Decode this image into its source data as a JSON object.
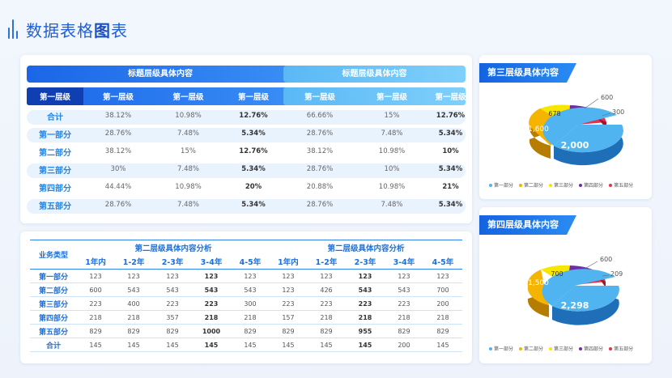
{
  "page": {
    "title_a": "数据表格",
    "title_b": "图",
    "title_c": "表"
  },
  "table1": {
    "group_a": "标题层级具体内容",
    "group_b": "标题层级具体内容",
    "headers": [
      "第一层级",
      "第一层级",
      "第一层级",
      "第一层级",
      "第一层级",
      "第一层级",
      "第一层级"
    ],
    "rows": [
      {
        "label": "合计",
        "cells": [
          "38.12%",
          "10.98%",
          "12.76%",
          "66.66%",
          "15%",
          "12.76%"
        ]
      },
      {
        "label": "第一部分",
        "cells": [
          "28.76%",
          "7.48%",
          "5.34%",
          "28.76%",
          "7.48%",
          "5.34%"
        ]
      },
      {
        "label": "第二部分",
        "cells": [
          "38.12%",
          "15%",
          "12.76%",
          "38.12%",
          "10.98%",
          "10%"
        ]
      },
      {
        "label": "第三部分",
        "cells": [
          "30%",
          "7.48%",
          "5.34%",
          "28.76%",
          "10%",
          "5.34%"
        ]
      },
      {
        "label": "第四部分",
        "cells": [
          "44.44%",
          "10.98%",
          "20%",
          "20.88%",
          "10.98%",
          "21%"
        ]
      },
      {
        "label": "第五部分",
        "cells": [
          "28.76%",
          "7.48%",
          "5.34%",
          "28.76%",
          "7.48%",
          "5.34%"
        ]
      }
    ]
  },
  "table2": {
    "row_header": "业务类型",
    "group_a": "第二层级具体内容分析",
    "group_b": "第二层级具体内容分析",
    "subheaders": [
      "1年内",
      "1-2年",
      "2-3年",
      "3-4年",
      "4-5年",
      "1年内",
      "1-2年",
      "2-3年",
      "3-4年",
      "4-5年"
    ],
    "rows": [
      {
        "label": "第一部分",
        "cells": [
          "123",
          "123",
          "123",
          "123",
          "123",
          "123",
          "123",
          "123",
          "123",
          "123"
        ]
      },
      {
        "label": "第二部分",
        "cells": [
          "600",
          "543",
          "543",
          "543",
          "543",
          "123",
          "426",
          "543",
          "543",
          "700"
        ]
      },
      {
        "label": "第三部分",
        "cells": [
          "223",
          "400",
          "223",
          "223",
          "300",
          "223",
          "223",
          "223",
          "223",
          "200"
        ]
      },
      {
        "label": "第四部分",
        "cells": [
          "218",
          "218",
          "357",
          "218",
          "218",
          "157",
          "218",
          "218",
          "218",
          "218"
        ]
      },
      {
        "label": "第五部分",
        "cells": [
          "829",
          "829",
          "829",
          "1000",
          "829",
          "829",
          "829",
          "955",
          "829",
          "829"
        ]
      },
      {
        "label": "合计",
        "cells": [
          "145",
          "145",
          "145",
          "145",
          "145",
          "145",
          "145",
          "145",
          "200",
          "145"
        ]
      }
    ]
  },
  "pie1": {
    "title": "第三层级具体内容",
    "labels": {
      "a": "2,000",
      "b": "1,600",
      "c": "678",
      "d": "600",
      "e": "300"
    }
  },
  "pie2": {
    "title": "第四层级具体内容",
    "labels": {
      "a": "2,298",
      "b": "1,500",
      "c": "700",
      "d": "600",
      "e": "209"
    }
  },
  "legend": [
    {
      "label": "第一部分",
      "color": "#4fb4f0"
    },
    {
      "label": "第二部分",
      "color": "#f4b400"
    },
    {
      "label": "第三部分",
      "color": "#f7e600"
    },
    {
      "label": "第四部分",
      "color": "#6d2fa8"
    },
    {
      "label": "第五部分",
      "color": "#e8304a"
    }
  ]
}
